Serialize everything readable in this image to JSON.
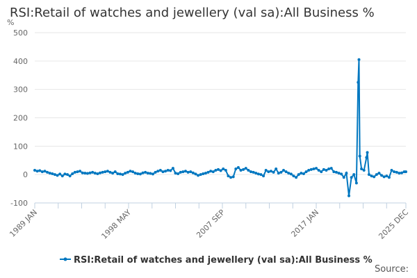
{
  "chart_data": {
    "type": "line",
    "title": "RSI:Retail of watches and jewellery (val sa):All Business %",
    "ylabel": "%",
    "ylim": [
      -100,
      500
    ],
    "yticks": [
      -100,
      0,
      100,
      200,
      300,
      400,
      500
    ],
    "xtick_labels": [
      "1989 JAN",
      "1998 MAY",
      "2007 SEP",
      "2017 JAN",
      "2025 DEC"
    ],
    "grid": true,
    "legend_position": "bottom",
    "color": "#0077c0",
    "series": [
      {
        "name": "RSI:Retail of watches and jewellery (val sa):All Business %",
        "x": [
          "1989 JAN",
          "1989 APR",
          "1989 JUL",
          "1989 OCT",
          "1990 JAN",
          "1990 APR",
          "1990 JUL",
          "1990 OCT",
          "1991 JAN",
          "1991 APR",
          "1991 JUL",
          "1991 OCT",
          "1992 JAN",
          "1992 APR",
          "1992 JUL",
          "1992 OCT",
          "1993 JAN",
          "1993 APR",
          "1993 JUL",
          "1993 OCT",
          "1994 JAN",
          "1994 APR",
          "1994 JUL",
          "1994 OCT",
          "1995 JAN",
          "1995 APR",
          "1995 JUL",
          "1995 OCT",
          "1996 JAN",
          "1996 APR",
          "1996 JUL",
          "1996 OCT",
          "1997 JAN",
          "1997 APR",
          "1997 JUL",
          "1997 OCT",
          "1998 JAN",
          "1998 APR",
          "1998 JUL",
          "1998 OCT",
          "1999 JAN",
          "1999 APR",
          "1999 JUL",
          "1999 OCT",
          "2000 JAN",
          "2000 APR",
          "2000 JUL",
          "2000 OCT",
          "2001 JAN",
          "2001 APR",
          "2001 JUL",
          "2001 OCT",
          "2002 JAN",
          "2002 APR",
          "2002 JUL",
          "2002 OCT",
          "2003 JAN",
          "2003 APR",
          "2003 JUL",
          "2003 OCT",
          "2004 JAN",
          "2004 APR",
          "2004 JUL",
          "2004 OCT",
          "2005 JAN",
          "2005 APR",
          "2005 JUL",
          "2005 OCT",
          "2006 JAN",
          "2006 APR",
          "2006 JUL",
          "2006 OCT",
          "2007 JAN",
          "2007 APR",
          "2007 JUL",
          "2007 OCT",
          "2008 JAN",
          "2008 APR",
          "2008 JUL",
          "2008 OCT",
          "2009 JAN",
          "2009 APR",
          "2009 JUL",
          "2009 OCT",
          "2010 JAN",
          "2010 APR",
          "2010 JUL",
          "2010 OCT",
          "2011 JAN",
          "2011 APR",
          "2011 JUL",
          "2011 OCT",
          "2012 JAN",
          "2012 APR",
          "2012 JUL",
          "2012 OCT",
          "2013 JAN",
          "2013 APR",
          "2013 JUL",
          "2013 OCT",
          "2014 JAN",
          "2014 APR",
          "2014 JUL",
          "2014 OCT",
          "2015 JAN",
          "2015 APR",
          "2015 JUL",
          "2015 OCT",
          "2016 JAN",
          "2016 APR",
          "2016 JUL",
          "2016 OCT",
          "2017 JAN",
          "2017 APR",
          "2017 JUL",
          "2017 OCT",
          "2018 JAN",
          "2018 APR",
          "2018 JUL",
          "2018 OCT",
          "2019 JAN",
          "2019 APR",
          "2019 JUL",
          "2019 OCT",
          "2020 JAN",
          "2020 APR",
          "2020 JUL",
          "2020 OCT",
          "2021 JAN",
          "2021 MAR",
          "2021 APR",
          "2021 MAY",
          "2021 JUL",
          "2021 OCT",
          "2022 JAN",
          "2022 FEB",
          "2022 APR",
          "2022 JUL",
          "2022 OCT",
          "2023 JAN",
          "2023 APR",
          "2023 JUL",
          "2023 OCT",
          "2024 JAN",
          "2024 APR",
          "2024 JUL",
          "2024 OCT",
          "2025 JAN",
          "2025 APR",
          "2025 JUL",
          "2025 OCT",
          "2025 DEC"
        ],
        "values": [
          15,
          12,
          14,
          10,
          12,
          8,
          5,
          3,
          0,
          -3,
          2,
          -5,
          2,
          0,
          -5,
          3,
          8,
          10,
          12,
          6,
          5,
          4,
          6,
          8,
          5,
          3,
          6,
          8,
          10,
          12,
          8,
          5,
          10,
          3,
          2,
          0,
          5,
          8,
          12,
          10,
          5,
          3,
          2,
          6,
          8,
          5,
          4,
          2,
          8,
          12,
          15,
          10,
          12,
          15,
          14,
          22,
          5,
          3,
          8,
          10,
          12,
          8,
          10,
          6,
          2,
          -3,
          0,
          3,
          5,
          8,
          12,
          10,
          15,
          18,
          14,
          20,
          15,
          -5,
          -10,
          -8,
          20,
          25,
          15,
          18,
          22,
          15,
          10,
          8,
          5,
          2,
          0,
          -5,
          15,
          10,
          12,
          8,
          20,
          5,
          8,
          15,
          10,
          5,
          2,
          -5,
          -10,
          0,
          5,
          3,
          10,
          15,
          18,
          20,
          22,
          15,
          10,
          18,
          15,
          20,
          22,
          10,
          8,
          5,
          2,
          -10,
          5,
          -75,
          -10,
          0,
          -30,
          325,
          405,
          65,
          20,
          15,
          60,
          78,
          0,
          -5,
          -8,
          0,
          5,
          -3,
          -8,
          -5,
          -10,
          15,
          10,
          8,
          5,
          6,
          10,
          10
        ]
      }
    ]
  },
  "source_label": "Source:"
}
